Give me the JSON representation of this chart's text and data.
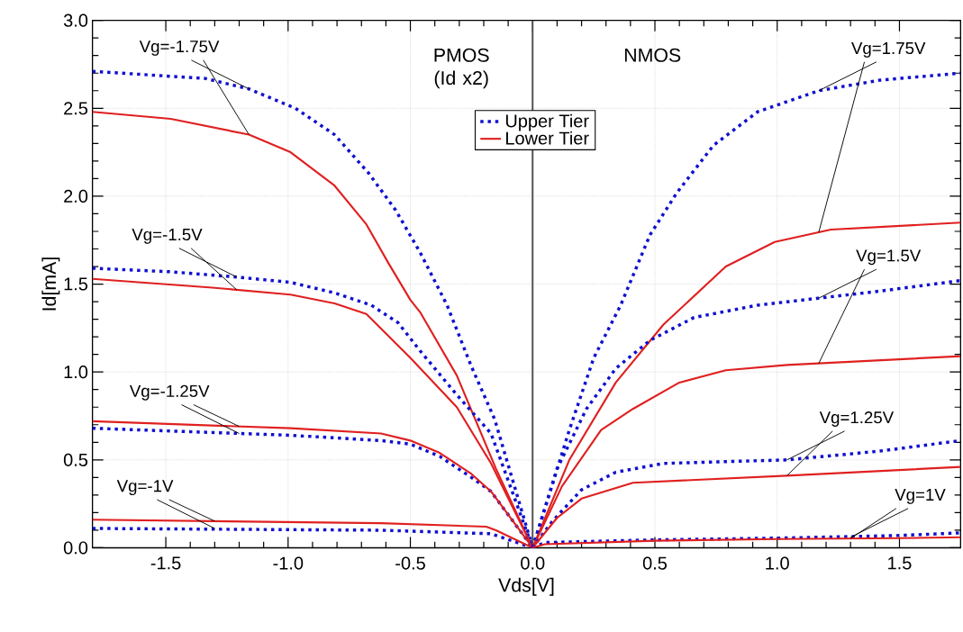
{
  "chart_data": {
    "type": "line",
    "xlabel": "Vds[V]",
    "ylabel": "Id[mA]",
    "xlim": [
      -1.8,
      1.75
    ],
    "ylim": [
      0,
      3.0
    ],
    "xticks": [
      -1.5,
      {
        "value": -1.0,
        "label": "-1.0"
      },
      -0.5,
      {
        "value": 0,
        "label": "0.0"
      },
      0.5,
      {
        "value": 1.0,
        "label": "1.0"
      },
      1.5
    ],
    "yticks": [
      {
        "value": 0,
        "label": "0.0"
      },
      0.5,
      {
        "value": 1.0,
        "label": "1.0"
      },
      1.5,
      {
        "value": 2.0,
        "label": "2.0"
      },
      2.5,
      {
        "value": 3.0,
        "label": "3.0"
      }
    ],
    "grid": true,
    "legend": "top",
    "ref_lines": [
      {
        "axis": "x",
        "value": 0,
        "color": "#555555"
      }
    ],
    "series": [
      {
        "name": "Upper Tier",
        "color": "#1010d0",
        "line_style": "dotted",
        "x": [
          -1.8,
          -1.34,
          -1.16,
          -0.97,
          -0.81,
          -0.67,
          -0.56,
          -0.46,
          -0.35,
          -0.25,
          -0.155,
          0
        ],
        "values": [
          2.71,
          2.67,
          2.61,
          2.5,
          2.35,
          2.13,
          1.92,
          1.68,
          1.38,
          1.03,
          0.73,
          0
        ]
      },
      {
        "name": "Lower Tier",
        "color": "#e02020",
        "line_style": "solid",
        "x": [
          -1.8,
          -1.48,
          -1.16,
          -0.99,
          -0.81,
          -0.68,
          -0.59,
          -0.5,
          -0.46,
          -0.31,
          -0.15,
          0
        ],
        "values": [
          2.48,
          2.44,
          2.35,
          2.25,
          2.06,
          1.84,
          1.62,
          1.41,
          1.34,
          0.98,
          0.45,
          0
        ]
      },
      {
        "color": "#1010d0",
        "line_style": "dotted",
        "x": [
          -1.8,
          -1.48,
          -1.21,
          -0.99,
          -0.81,
          -0.66,
          -0.55,
          -0.46,
          -0.31,
          -0.17,
          0
        ],
        "values": [
          1.59,
          1.57,
          1.54,
          1.51,
          1.45,
          1.38,
          1.28,
          1.12,
          0.87,
          0.65,
          0
        ]
      },
      {
        "color": "#e02020",
        "line_style": "solid",
        "x": [
          -1.8,
          -1.31,
          -0.99,
          -0.81,
          -0.68,
          -0.5,
          -0.31,
          -0.17,
          0
        ],
        "values": [
          1.53,
          1.48,
          1.44,
          1.39,
          1.33,
          1.08,
          0.8,
          0.48,
          0
        ]
      },
      {
        "color": "#1010d0",
        "line_style": "dotted",
        "x": [
          -1.8,
          -0.99,
          -0.62,
          -0.5,
          -0.38,
          -0.25,
          -0.17,
          0
        ],
        "values": [
          0.68,
          0.64,
          0.61,
          0.59,
          0.52,
          0.4,
          0.32,
          0
        ]
      },
      {
        "color": "#e02020",
        "line_style": "solid",
        "x": [
          -1.8,
          -0.99,
          -0.62,
          -0.5,
          -0.38,
          -0.25,
          -0.17,
          0
        ],
        "values": [
          0.72,
          0.68,
          0.65,
          0.61,
          0.54,
          0.42,
          0.32,
          0
        ]
      },
      {
        "color": "#1010d0",
        "line_style": "dotted",
        "x": [
          -1.8,
          -0.62,
          -0.17,
          0
        ],
        "values": [
          0.11,
          0.1,
          0.08,
          0
        ]
      },
      {
        "color": "#e02020",
        "line_style": "solid",
        "x": [
          -1.8,
          -0.62,
          -0.19,
          -0.15,
          0
        ],
        "values": [
          0.16,
          0.14,
          0.12,
          0.1,
          0
        ]
      },
      {
        "color": "#1010d0",
        "line_style": "dotted",
        "x": [
          0,
          0.15,
          0.25,
          0.36,
          0.48,
          0.59,
          0.74,
          0.92,
          1.17,
          1.42,
          1.75
        ],
        "values": [
          0,
          0.67,
          1.08,
          1.38,
          1.78,
          2.02,
          2.29,
          2.48,
          2.6,
          2.66,
          2.7
        ]
      },
      {
        "color": "#e02020",
        "line_style": "solid",
        "x": [
          0,
          0.15,
          0.34,
          0.535,
          0.79,
          0.99,
          1.22,
          1.75
        ],
        "values": [
          0,
          0.5,
          0.94,
          1.27,
          1.6,
          1.74,
          1.81,
          1.85
        ]
      },
      {
        "color": "#1010d0",
        "line_style": "dotted",
        "x": [
          0,
          0.1,
          0.22,
          0.34,
          0.48,
          0.66,
          0.92,
          1.17,
          1.42,
          1.75
        ],
        "values": [
          0,
          0.45,
          0.79,
          1.02,
          1.18,
          1.31,
          1.38,
          1.42,
          1.46,
          1.52
        ]
      },
      {
        "color": "#e02020",
        "line_style": "solid",
        "x": [
          0,
          0.12,
          0.28,
          0.41,
          0.6,
          0.79,
          1.04,
          1.75
        ],
        "values": [
          0,
          0.35,
          0.67,
          0.79,
          0.94,
          1.01,
          1.04,
          1.09
        ]
      },
      {
        "color": "#1010d0",
        "line_style": "dotted",
        "x": [
          0,
          0.08,
          0.2,
          0.34,
          0.535,
          1.04,
          1.42,
          1.75
        ],
        "values": [
          0,
          0.15,
          0.33,
          0.43,
          0.48,
          0.5,
          0.55,
          0.61
        ]
      },
      {
        "color": "#e02020",
        "line_style": "solid",
        "x": [
          0,
          0.1,
          0.2,
          0.41,
          1.04,
          1.75
        ],
        "values": [
          0,
          0.17,
          0.28,
          0.37,
          0.41,
          0.46
        ]
      },
      {
        "color": "#1010d0",
        "line_style": "dotted",
        "x": [
          0,
          0.05,
          0.5,
          1.0,
          1.5,
          1.75
        ],
        "values": [
          0,
          0.03,
          0.045,
          0.055,
          0.07,
          0.085
        ]
      },
      {
        "color": "#e02020",
        "line_style": "solid",
        "x": [
          0,
          0.05,
          0.5,
          1.0,
          1.5,
          1.75
        ],
        "values": [
          0,
          0.02,
          0.04,
          0.05,
          0.055,
          0.06
        ]
      }
    ],
    "annotations": [
      "PMOS (Id x2)",
      "NMOS",
      {
        "text": "Vg=-1.75V",
        "x": -1.16,
        "y": 2.61
      },
      {
        "text": "Vg=-1.5V",
        "x": -1.21,
        "y": 1.54
      },
      {
        "text": "Vg=-1.25V",
        "x": -1.2,
        "y": 0.65
      },
      {
        "text": "Vg=-1V",
        "x": -1.3,
        "y": 0.11
      },
      {
        "text": "Vg=1.75V",
        "x": 1.17,
        "y": 2.6
      },
      {
        "text": "Vg=1.5V",
        "x": 1.17,
        "y": 1.42
      },
      {
        "text": "Vg=1.25V",
        "x": 1.04,
        "y": 0.5
      },
      {
        "text": "Vg=1V",
        "x": 1.3,
        "y": 0.06
      }
    ]
  }
}
